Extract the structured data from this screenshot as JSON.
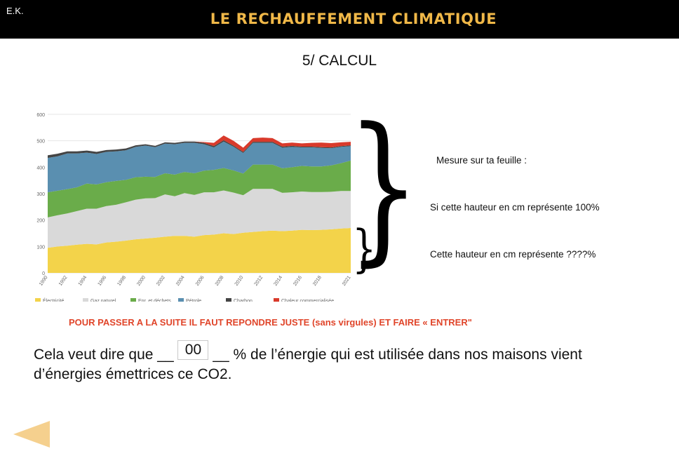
{
  "header": {
    "initials": "E.K.",
    "title": "LE RECHAUFFEMENT CLIMATIQUE"
  },
  "section_title": "5/ CALCUL",
  "notes": {
    "measure": "Mesure sur ta feuille :",
    "full_height": "Si cette hauteur en cm représente 100%",
    "part_height": "Cette hauteur en cm représente ????%"
  },
  "instruction": "POUR PASSER A LA SUITE IL FAUT REPONDRE JUSTE (sans virgules)  ET FAIRE « ENTRER\"",
  "sentence": {
    "before": "Cela veut dire que __",
    "after": "__ % de l’énergie qui est utilisée dans nos maisons vient",
    "line2": "d’énergies émettrices ce CO2.",
    "answer_value": "00"
  },
  "colors": {
    "title": "#f0b848",
    "instruction": "#e0452a",
    "back_arrow": "#f5d08e"
  },
  "icons": {
    "back": "left-triangle-arrow"
  },
  "chart_data": {
    "type": "area",
    "stacked": true,
    "x": [
      1990,
      1991,
      1992,
      1993,
      1994,
      1995,
      1996,
      1997,
      1998,
      1999,
      2000,
      2001,
      2002,
      2003,
      2004,
      2005,
      2006,
      2007,
      2008,
      2009,
      2010,
      2011,
      2012,
      2013,
      2014,
      2015,
      2016,
      2017,
      2018,
      2019,
      2020,
      2021
    ],
    "x_ticks": [
      "1990",
      "1992",
      "1994",
      "1996",
      "1998",
      "2000",
      "2002",
      "2004",
      "2006",
      "2008",
      "2010",
      "2012",
      "2014",
      "2016",
      "2018",
      "2021"
    ],
    "y_ticks": [
      "0",
      "100",
      "200",
      "300",
      "400",
      "500",
      "600"
    ],
    "ylim": [
      0,
      600
    ],
    "grid": true,
    "series": [
      {
        "name": "Électricité",
        "color": "#f3d34a",
        "values": [
          95,
          100,
          103,
          107,
          110,
          108,
          115,
          118,
          122,
          127,
          130,
          133,
          137,
          140,
          140,
          137,
          143,
          145,
          150,
          147,
          152,
          155,
          158,
          160,
          158,
          160,
          163,
          162,
          163,
          165,
          168,
          170
        ]
      },
      {
        "name": "Gaz naturel",
        "color": "#d9d9d9",
        "values": [
          115,
          118,
          122,
          127,
          133,
          135,
          138,
          140,
          145,
          150,
          152,
          150,
          160,
          150,
          162,
          158,
          162,
          160,
          162,
          157,
          142,
          163,
          160,
          158,
          145,
          145,
          145,
          144,
          143,
          142,
          142,
          140
        ]
      },
      {
        "name": "Enr. et déchets",
        "color": "#6aac4a",
        "values": [
          95,
          93,
          92,
          90,
          95,
          92,
          90,
          90,
          85,
          85,
          82,
          80,
          80,
          82,
          80,
          82,
          82,
          85,
          85,
          84,
          82,
          92,
          92,
          92,
          93,
          95,
          97,
          97,
          97,
          100,
          105,
          115
        ]
      },
      {
        "name": "Pétrole",
        "color": "#5a8fb0",
        "values": [
          130,
          130,
          135,
          128,
          117,
          115,
          115,
          112,
          112,
          115,
          118,
          113,
          112,
          115,
          110,
          115,
          100,
          85,
          100,
          90,
          78,
          82,
          82,
          82,
          78,
          77,
          70,
          72,
          70,
          65,
          62,
          55
        ]
      },
      {
        "name": "Charbon",
        "color": "#444444",
        "values": [
          10,
          10,
          8,
          8,
          8,
          8,
          7,
          7,
          7,
          6,
          5,
          5,
          5,
          5,
          5,
          5,
          5,
          5,
          5,
          4,
          4,
          4,
          4,
          4,
          4,
          4,
          3,
          3,
          3,
          3,
          3,
          3
        ]
      },
      {
        "name": "Chaleur commercialisée",
        "color": "#d93a2b",
        "values": [
          0,
          0,
          0,
          0,
          0,
          0,
          0,
          0,
          0,
          0,
          0,
          0,
          0,
          0,
          0,
          0,
          3,
          12,
          18,
          18,
          16,
          14,
          16,
          14,
          12,
          12,
          12,
          14,
          17,
          16,
          14,
          13
        ]
      }
    ]
  }
}
